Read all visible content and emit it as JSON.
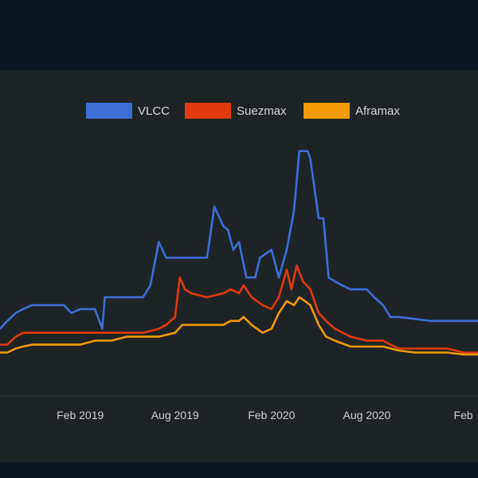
{
  "chart_data": {
    "type": "line",
    "title": "",
    "xlabel": "",
    "ylabel": "",
    "legend": "top-center",
    "grid": false,
    "x_ticks": [
      "Feb 2019",
      "Aug 2019",
      "Feb 2020",
      "Aug 2020",
      "Feb"
    ],
    "x_range": [
      "2018-09",
      "2021-03"
    ],
    "series": [
      {
        "name": "VLCC",
        "color": "#3c6fd6",
        "points": [
          [
            "2018-09-01",
            17
          ],
          [
            "2018-09-15",
            19
          ],
          [
            "2018-10-01",
            21
          ],
          [
            "2018-10-15",
            22
          ],
          [
            "2018-11-01",
            23
          ],
          [
            "2018-12-01",
            23
          ],
          [
            "2019-01-01",
            23
          ],
          [
            "2019-01-15",
            21
          ],
          [
            "2019-02-01",
            22
          ],
          [
            "2019-03-01",
            22
          ],
          [
            "2019-03-15",
            17
          ],
          [
            "2019-03-20",
            25
          ],
          [
            "2019-05-01",
            25
          ],
          [
            "2019-06-01",
            25
          ],
          [
            "2019-06-15",
            28
          ],
          [
            "2019-07-01",
            39
          ],
          [
            "2019-07-15",
            35
          ],
          [
            "2019-09-01",
            35
          ],
          [
            "2019-10-01",
            35
          ],
          [
            "2019-10-15",
            48
          ],
          [
            "2019-11-01",
            43
          ],
          [
            "2019-11-10",
            42
          ],
          [
            "2019-11-20",
            37
          ],
          [
            "2019-12-01",
            39
          ],
          [
            "2019-12-15",
            30
          ],
          [
            "2020-01-01",
            30
          ],
          [
            "2020-01-10",
            35
          ],
          [
            "2020-02-01",
            37
          ],
          [
            "2020-02-15",
            30
          ],
          [
            "2020-03-01",
            37
          ],
          [
            "2020-03-15",
            47
          ],
          [
            "2020-03-25",
            62
          ],
          [
            "2020-04-01",
            62
          ],
          [
            "2020-04-10",
            62
          ],
          [
            "2020-04-15",
            60
          ],
          [
            "2020-05-01",
            45
          ],
          [
            "2020-05-10",
            45
          ],
          [
            "2020-05-20",
            30
          ],
          [
            "2020-06-01",
            29
          ],
          [
            "2020-06-15",
            28
          ],
          [
            "2020-07-01",
            27
          ],
          [
            "2020-08-01",
            27
          ],
          [
            "2020-08-15",
            25
          ],
          [
            "2020-09-01",
            23
          ],
          [
            "2020-09-15",
            20
          ],
          [
            "2020-10-01",
            20
          ],
          [
            "2020-12-01",
            19
          ],
          [
            "2021-01-01",
            19
          ],
          [
            "2021-03-01",
            19
          ]
        ]
      },
      {
        "name": "Suezmax",
        "color": "#e03a0e",
        "points": [
          [
            "2018-09-01",
            13
          ],
          [
            "2018-09-15",
            13
          ],
          [
            "2018-10-01",
            15
          ],
          [
            "2018-10-15",
            16
          ],
          [
            "2018-11-01",
            16
          ],
          [
            "2018-12-01",
            16
          ],
          [
            "2019-01-01",
            16
          ],
          [
            "2019-02-01",
            16
          ],
          [
            "2019-03-01",
            16
          ],
          [
            "2019-04-01",
            16
          ],
          [
            "2019-05-01",
            16
          ],
          [
            "2019-06-01",
            16
          ],
          [
            "2019-07-01",
            17
          ],
          [
            "2019-07-15",
            18
          ],
          [
            "2019-08-01",
            20
          ],
          [
            "2019-08-10",
            30
          ],
          [
            "2019-08-20",
            27
          ],
          [
            "2019-09-01",
            26
          ],
          [
            "2019-10-01",
            25
          ],
          [
            "2019-11-01",
            26
          ],
          [
            "2019-11-15",
            27
          ],
          [
            "2019-12-01",
            26
          ],
          [
            "2019-12-10",
            28
          ],
          [
            "2019-12-25",
            25
          ],
          [
            "2020-01-15",
            23
          ],
          [
            "2020-02-01",
            22
          ],
          [
            "2020-02-15",
            25
          ],
          [
            "2020-03-01",
            32
          ],
          [
            "2020-03-10",
            27
          ],
          [
            "2020-03-20",
            33
          ],
          [
            "2020-04-01",
            29
          ],
          [
            "2020-04-15",
            27
          ],
          [
            "2020-05-01",
            21
          ],
          [
            "2020-05-15",
            19
          ],
          [
            "2020-06-01",
            17
          ],
          [
            "2020-07-01",
            15
          ],
          [
            "2020-08-01",
            14
          ],
          [
            "2020-09-01",
            14
          ],
          [
            "2020-09-15",
            13
          ],
          [
            "2020-10-01",
            12
          ],
          [
            "2020-11-01",
            12
          ],
          [
            "2020-12-01",
            12
          ],
          [
            "2021-01-01",
            12
          ],
          [
            "2021-02-01",
            11
          ],
          [
            "2021-03-01",
            11
          ]
        ]
      },
      {
        "name": "Aframax",
        "color": "#f19b06",
        "points": [
          [
            "2018-09-01",
            11
          ],
          [
            "2018-09-15",
            11
          ],
          [
            "2018-10-01",
            12
          ],
          [
            "2018-10-15",
            12.5
          ],
          [
            "2018-11-01",
            13
          ],
          [
            "2018-12-01",
            13
          ],
          [
            "2019-01-01",
            13
          ],
          [
            "2019-02-01",
            13
          ],
          [
            "2019-03-01",
            14
          ],
          [
            "2019-04-01",
            14
          ],
          [
            "2019-05-01",
            15
          ],
          [
            "2019-06-01",
            15
          ],
          [
            "2019-07-01",
            15
          ],
          [
            "2019-08-01",
            16
          ],
          [
            "2019-08-15",
            18
          ],
          [
            "2019-09-01",
            18
          ],
          [
            "2019-10-01",
            18
          ],
          [
            "2019-11-01",
            18
          ],
          [
            "2019-11-15",
            19
          ],
          [
            "2019-12-01",
            19
          ],
          [
            "2019-12-10",
            20
          ],
          [
            "2019-12-25",
            18
          ],
          [
            "2020-01-15",
            16
          ],
          [
            "2020-02-01",
            17
          ],
          [
            "2020-02-15",
            21
          ],
          [
            "2020-03-01",
            24
          ],
          [
            "2020-03-15",
            23
          ],
          [
            "2020-03-25",
            25
          ],
          [
            "2020-04-05",
            24
          ],
          [
            "2020-04-15",
            23
          ],
          [
            "2020-05-01",
            18
          ],
          [
            "2020-05-15",
            15
          ],
          [
            "2020-06-01",
            14
          ],
          [
            "2020-07-01",
            12.5
          ],
          [
            "2020-08-01",
            12.5
          ],
          [
            "2020-09-01",
            12.5
          ],
          [
            "2020-10-01",
            11.5
          ],
          [
            "2020-11-01",
            11
          ],
          [
            "2020-12-01",
            11
          ],
          [
            "2021-01-01",
            11
          ],
          [
            "2021-02-01",
            10.5
          ],
          [
            "2021-03-01",
            10.5
          ]
        ]
      }
    ],
    "ylim": [
      0,
      70
    ]
  }
}
